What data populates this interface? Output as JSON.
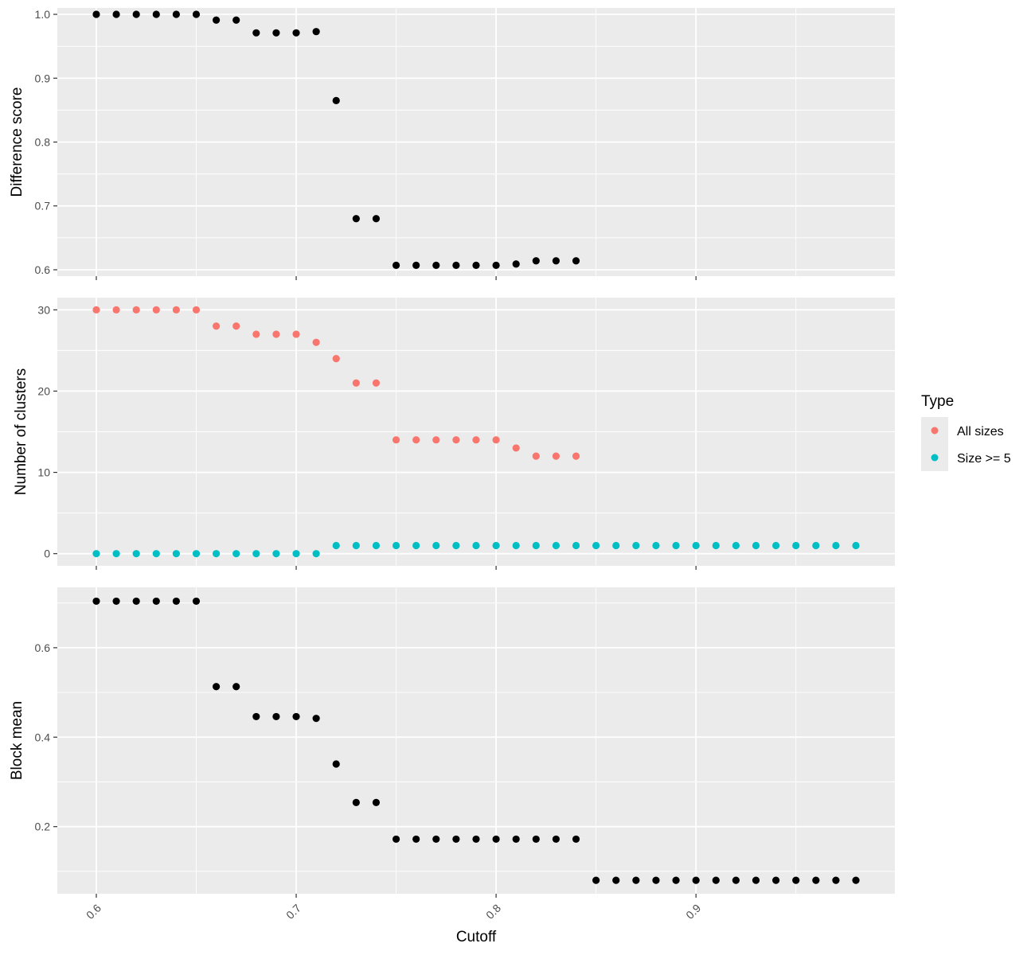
{
  "chart_data": [
    {
      "type": "scatter",
      "ylabel": "Difference score",
      "ylim": [
        0.59,
        1.01
      ],
      "yticks": [
        0.6,
        0.7,
        0.8,
        0.9,
        1.0
      ],
      "ytick_labels": [
        "0.6",
        "0.7",
        "0.8",
        "0.9",
        "1.0"
      ],
      "grid": true,
      "series": [
        {
          "color": "#000000",
          "x": [
            0.6,
            0.61,
            0.62,
            0.63,
            0.64,
            0.65,
            0.66,
            0.67,
            0.68,
            0.69,
            0.7,
            0.71,
            0.72,
            0.73,
            0.74,
            0.75,
            0.76,
            0.77,
            0.78,
            0.79,
            0.8,
            0.81,
            0.82,
            0.83,
            0.84
          ],
          "y": [
            1.0,
            1.0,
            1.0,
            1.0,
            1.0,
            1.0,
            0.991,
            0.991,
            0.971,
            0.971,
            0.971,
            0.973,
            0.865,
            0.68,
            0.68,
            0.607,
            0.607,
            0.607,
            0.607,
            0.607,
            0.607,
            0.609,
            0.614,
            0.614,
            0.614
          ]
        }
      ]
    },
    {
      "type": "scatter",
      "ylabel": "Number of clusters",
      "ylim": [
        -1.5,
        31.5
      ],
      "yticks": [
        0,
        10,
        20,
        30
      ],
      "ytick_labels": [
        "0",
        "10",
        "20",
        "30"
      ],
      "grid": true,
      "legend": {
        "title": "Type",
        "position": "right",
        "entries": [
          {
            "label": "All sizes",
            "color": "#F8766D"
          },
          {
            "label": "Size >= 5",
            "color": "#00BFC4"
          }
        ]
      },
      "series": [
        {
          "name": "All sizes",
          "color": "#F8766D",
          "x": [
            0.6,
            0.61,
            0.62,
            0.63,
            0.64,
            0.65,
            0.66,
            0.67,
            0.68,
            0.69,
            0.7,
            0.71,
            0.72,
            0.73,
            0.74,
            0.75,
            0.76,
            0.77,
            0.78,
            0.79,
            0.8,
            0.81,
            0.82,
            0.83,
            0.84
          ],
          "y": [
            30,
            30,
            30,
            30,
            30,
            30,
            28,
            28,
            27,
            27,
            27,
            26,
            24,
            21,
            21,
            14,
            14,
            14,
            14,
            14,
            14,
            13,
            12,
            12,
            12
          ]
        },
        {
          "name": "Size >= 5",
          "color": "#00BFC4",
          "x": [
            0.6,
            0.61,
            0.62,
            0.63,
            0.64,
            0.65,
            0.66,
            0.67,
            0.68,
            0.69,
            0.7,
            0.71,
            0.72,
            0.73,
            0.74,
            0.75,
            0.76,
            0.77,
            0.78,
            0.79,
            0.8,
            0.81,
            0.82,
            0.83,
            0.84,
            0.85,
            0.86,
            0.87,
            0.88,
            0.89,
            0.9,
            0.91,
            0.92,
            0.93,
            0.94,
            0.95,
            0.96,
            0.97,
            0.98
          ],
          "y": [
            0,
            0,
            0,
            0,
            0,
            0,
            0,
            0,
            0,
            0,
            0,
            0,
            1,
            1,
            1,
            1,
            1,
            1,
            1,
            1,
            1,
            1,
            1,
            1,
            1,
            1,
            1,
            1,
            1,
            1,
            1,
            1,
            1,
            1,
            1,
            1,
            1,
            1,
            1
          ]
        }
      ]
    },
    {
      "type": "scatter",
      "ylabel": "Block mean",
      "xlabel": "Cutoff",
      "ylim": [
        0.05,
        0.735
      ],
      "yticks": [
        0.2,
        0.4,
        0.6
      ],
      "ytick_labels": [
        "0.2",
        "0.4",
        "0.6"
      ],
      "xticks": [
        0.6,
        0.7,
        0.8,
        0.9
      ],
      "xtick_labels": [
        "0.6",
        "0.7",
        "0.8",
        "0.9"
      ],
      "grid": true,
      "series": [
        {
          "color": "#000000",
          "x": [
            0.6,
            0.61,
            0.62,
            0.63,
            0.64,
            0.65,
            0.66,
            0.67,
            0.68,
            0.69,
            0.7,
            0.71,
            0.72,
            0.73,
            0.74,
            0.75,
            0.76,
            0.77,
            0.78,
            0.79,
            0.8,
            0.81,
            0.82,
            0.83,
            0.84,
            0.85,
            0.86,
            0.87,
            0.88,
            0.89,
            0.9,
            0.91,
            0.92,
            0.93,
            0.94,
            0.95,
            0.96,
            0.97,
            0.98
          ],
          "y": [
            0.704,
            0.704,
            0.704,
            0.704,
            0.704,
            0.704,
            0.513,
            0.513,
            0.446,
            0.446,
            0.446,
            0.442,
            0.34,
            0.254,
            0.254,
            0.172,
            0.172,
            0.172,
            0.172,
            0.172,
            0.172,
            0.172,
            0.172,
            0.172,
            0.172,
            0.08,
            0.08,
            0.08,
            0.08,
            0.08,
            0.08,
            0.08,
            0.08,
            0.08,
            0.08,
            0.08,
            0.08,
            0.08,
            0.08
          ]
        }
      ]
    }
  ],
  "x_axis": {
    "xlim": [
      0.5805,
      0.9995
    ],
    "xticks": [
      0.6,
      0.7,
      0.8,
      0.9
    ],
    "xtick_labels": [
      "0.6",
      "0.7",
      "0.8",
      "0.9"
    ],
    "xlabel": "Cutoff"
  },
  "colors": {
    "panel_background": "#EBEBEB",
    "grid_line": "#FFFFFF",
    "tick_mark": "#333333"
  }
}
